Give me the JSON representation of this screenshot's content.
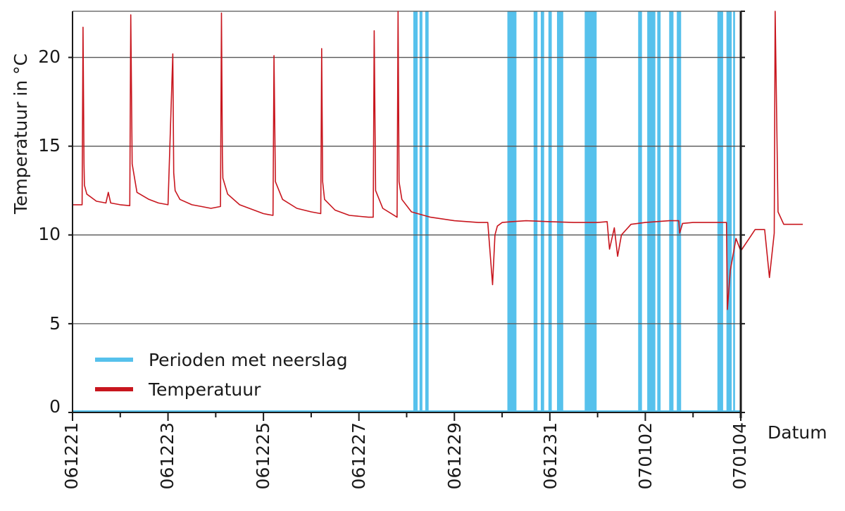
{
  "chart_data": {
    "type": "line",
    "title": "",
    "xlabel": "Datum",
    "ylabel": "Temperatuur in °C",
    "ylim": [
      0,
      22.6
    ],
    "yticks": [
      0,
      5,
      10,
      15,
      20
    ],
    "xticks": [
      "061221",
      "061223",
      "061225",
      "061227",
      "061229",
      "061231",
      "070102",
      "070104"
    ],
    "grid": "horizontal",
    "legend_position": "lower-left",
    "colors": {
      "precipitation": "#56c1ec",
      "temperature": "#c8161e",
      "grid": "#555555",
      "axis": "#1a1a1a"
    },
    "series": [
      {
        "name": "Temperatuur",
        "type": "line",
        "color": "#c8161e",
        "x_days": [
          0,
          0.2,
          0.22,
          0.24,
          0.25,
          0.3,
          0.5,
          0.7,
          0.75,
          0.8,
          1.0,
          1.2,
          1.22,
          1.25,
          1.35,
          1.6,
          1.8,
          2.0,
          2.1,
          2.12,
          2.15,
          2.25,
          2.5,
          2.7,
          2.9,
          3.1,
          3.12,
          3.14,
          3.15,
          3.25,
          3.5,
          3.9,
          4.0,
          4.1,
          4.2,
          4.22,
          4.25,
          4.4,
          4.7,
          5.0,
          5.2,
          5.22,
          5.24,
          5.28,
          5.5,
          5.8,
          6.2,
          6.3,
          6.32,
          6.35,
          6.5,
          6.8,
          6.82,
          6.84,
          6.9,
          7.1,
          7.5,
          8.0,
          8.5,
          8.7,
          8.8,
          8.85,
          8.9,
          9.0,
          9.2,
          9.5,
          10.0,
          10.5,
          11.0,
          11.2,
          11.25,
          11.35,
          11.42,
          11.5,
          11.7,
          12.0,
          12.5,
          12.7,
          12.72,
          12.78,
          13.0,
          13.5,
          13.7,
          13.72,
          13.78,
          13.9,
          14.0,
          14.2,
          14.3,
          14.5,
          14.6,
          14.7,
          14.72,
          14.78,
          14.9,
          15.3
        ],
        "y": [
          11.7,
          11.7,
          21.7,
          14.0,
          12.8,
          12.3,
          11.9,
          11.8,
          12.4,
          11.8,
          11.7,
          11.65,
          22.4,
          14.0,
          12.4,
          12.0,
          11.8,
          11.7,
          20.2,
          13.5,
          12.5,
          12.0,
          11.7,
          11.6,
          11.5,
          11.6,
          22.5,
          14.5,
          13.2,
          12.3,
          11.7,
          11.3,
          11.2,
          11.15,
          11.1,
          20.1,
          13.0,
          12.0,
          11.5,
          11.3,
          11.2,
          20.5,
          13.0,
          12.0,
          11.4,
          11.1,
          11.0,
          11.0,
          21.5,
          12.5,
          11.5,
          11.0,
          22.6,
          13.0,
          12.0,
          11.3,
          11.0,
          10.8,
          10.7,
          10.7,
          7.2,
          10.0,
          10.5,
          10.7,
          10.75,
          10.8,
          10.75,
          10.7,
          10.7,
          10.75,
          9.2,
          10.4,
          8.8,
          10.0,
          10.6,
          10.7,
          10.8,
          10.8,
          10.1,
          10.65,
          10.7,
          10.7,
          10.7,
          5.8,
          8.0,
          9.8,
          9.1,
          9.9,
          10.3,
          10.3,
          7.6,
          10.1,
          22.6,
          11.3,
          10.6,
          10.6
        ]
      },
      {
        "name": "Perioden met neerslag",
        "type": "bands",
        "color": "#56c1ec",
        "intervals_days": [
          [
            7.14,
            7.23
          ],
          [
            7.27,
            7.33
          ],
          [
            7.39,
            7.46
          ],
          [
            9.11,
            9.3
          ],
          [
            9.66,
            9.74
          ],
          [
            9.81,
            9.88
          ],
          [
            9.97,
            10.04
          ],
          [
            10.15,
            10.28
          ],
          [
            10.73,
            10.98
          ],
          [
            11.85,
            11.93
          ],
          [
            12.04,
            12.21
          ],
          [
            12.25,
            12.32
          ],
          [
            12.5,
            12.59
          ],
          [
            12.66,
            12.75
          ],
          [
            13.51,
            13.63
          ],
          [
            13.7,
            13.81
          ],
          [
            13.84,
            13.88
          ]
        ]
      }
    ],
    "legend": [
      "Perioden met neerslag",
      "Temperatuur"
    ]
  },
  "labels": {
    "ylabel": "Temperatuur in °C",
    "xlabel": "Datum",
    "yticks": [
      "0",
      "5",
      "10",
      "15",
      "20"
    ],
    "xticks": [
      "061221",
      "061223",
      "061225",
      "061227",
      "061229",
      "061231",
      "070102",
      "070104"
    ],
    "legend": {
      "precip": "Perioden met neerslag",
      "temp": "Temperatuur"
    }
  }
}
